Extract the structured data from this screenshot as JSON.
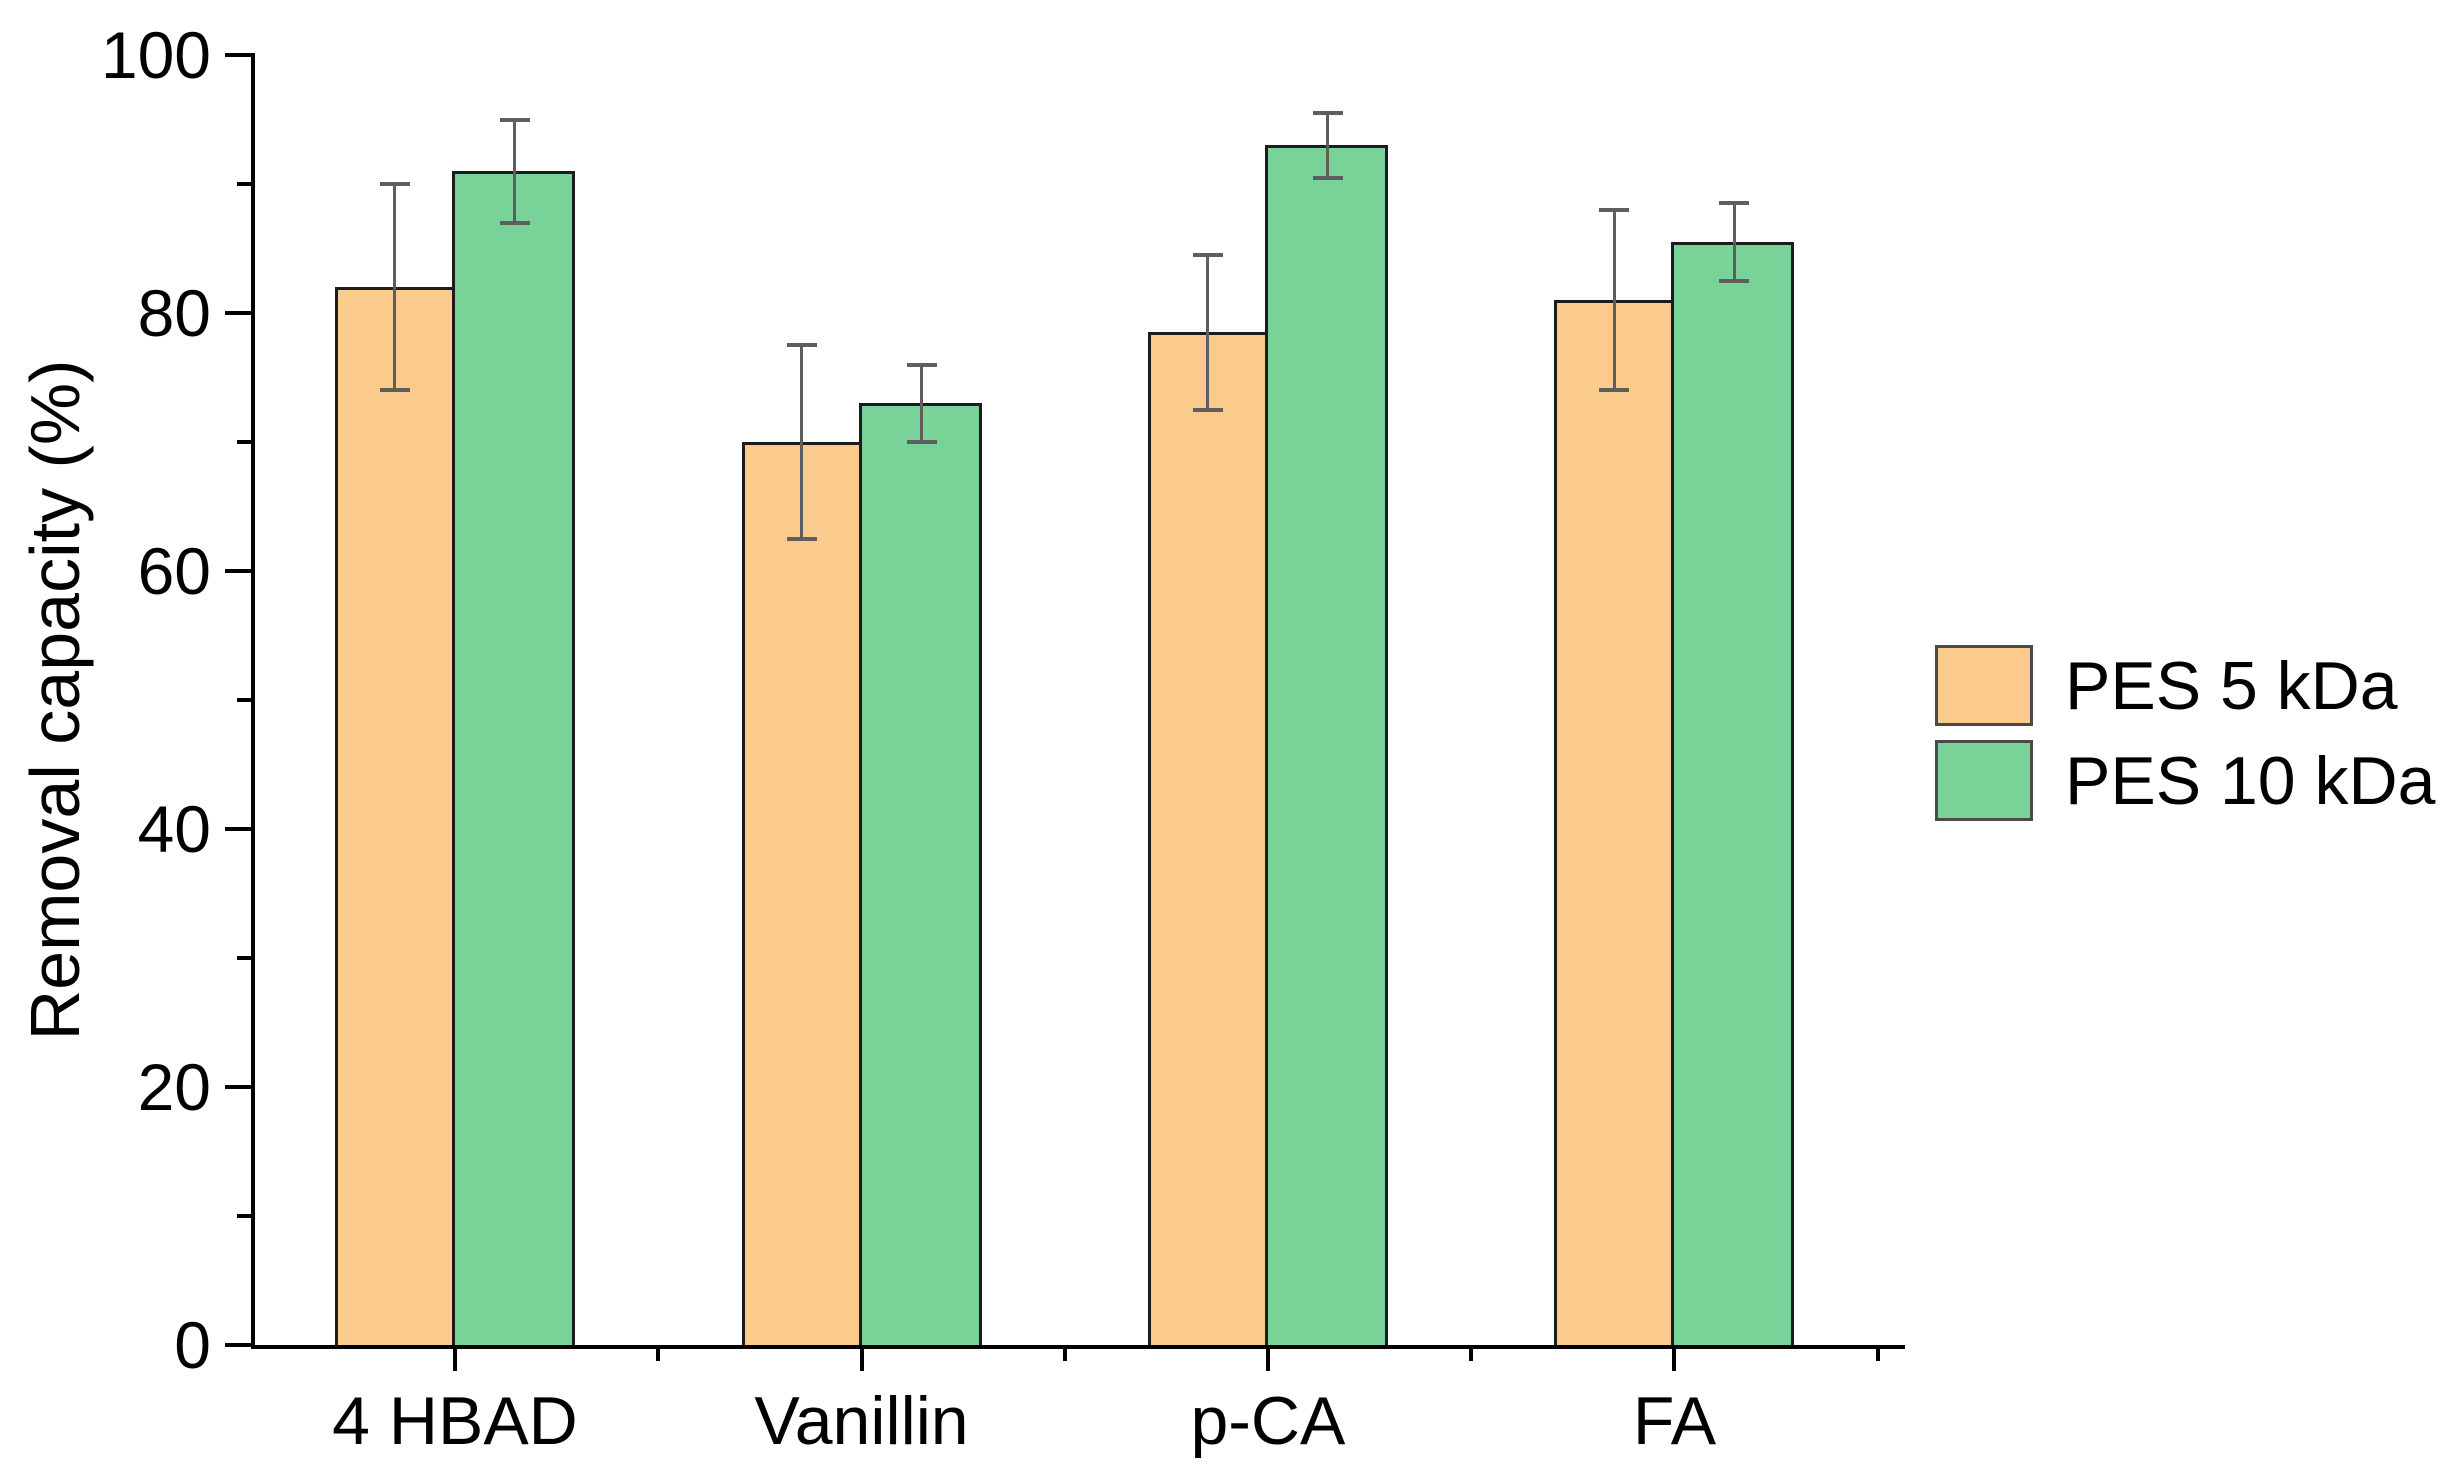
{
  "chart_data": {
    "type": "bar",
    "title": "",
    "ylabel": "Removal capacity (%)",
    "xlabel": "",
    "categories": [
      "4 HBAD",
      "Vanillin",
      "p-CA",
      "FA"
    ],
    "series": [
      {
        "name": "PES 5 kDa",
        "color": "#FBCB8D",
        "values": [
          82,
          70,
          78.5,
          81
        ],
        "errors": [
          8,
          7.5,
          6,
          7
        ]
      },
      {
        "name": "PES 10 kDa",
        "color": "#79D399",
        "values": [
          91,
          73,
          93,
          85.5
        ],
        "errors": [
          4,
          3,
          2.5,
          3
        ]
      }
    ],
    "ylim": [
      0,
      100
    ],
    "y_major_ticks": [
      0,
      20,
      40,
      60,
      80,
      100
    ],
    "y_minor_step": 10,
    "grid": false,
    "legend_position": "right-center",
    "bar_outline_color": "#1C1C1C",
    "error_bar_color": "#5E5E5E",
    "axis_color": "#000000",
    "text_color": "#000000",
    "background": "#FFFFFF"
  }
}
